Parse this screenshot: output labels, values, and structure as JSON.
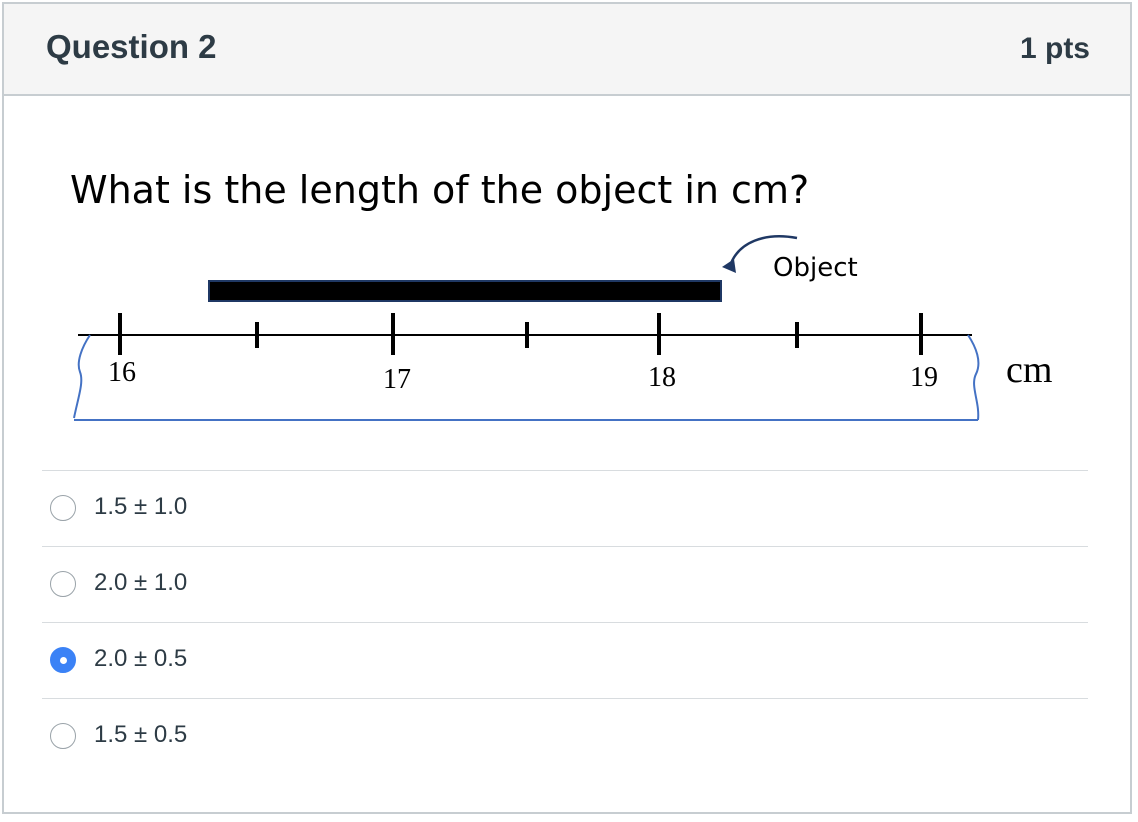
{
  "header": {
    "title": "Question 2",
    "points": "1 pts"
  },
  "question": {
    "text": "What is the length of the object in cm?"
  },
  "figure": {
    "object_label": "Object",
    "unit_label": "cm",
    "ruler_labels": [
      "16",
      "17",
      "18",
      "19"
    ]
  },
  "answers": [
    {
      "label": "1.5 ±  1.0",
      "selected": false
    },
    {
      "label": "2.0 ±  1.0",
      "selected": false
    },
    {
      "label": "2.0 ±  0.5",
      "selected": true
    },
    {
      "label": "1.5 ±  0.5",
      "selected": false
    }
  ],
  "colors": {
    "accent": "#3b82f6",
    "ruler_blue": "#4472c4"
  }
}
